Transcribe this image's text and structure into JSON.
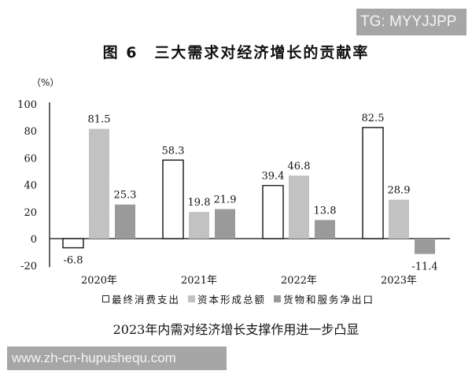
{
  "watermark_top": "TG: MYYJJPP",
  "watermark_bottom": "www.zh-cn-hupushequ.com",
  "title": "图 6　三大需求对经济增长的贡献率",
  "unit_label": "（%）",
  "legend": [
    {
      "label": "最终消费支出",
      "style": "white"
    },
    {
      "label": "资本形成总额",
      "style": "hatch"
    },
    {
      "label": "货物和服务净出口",
      "style": "grey"
    }
  ],
  "subtitle": "2023年内需对经济增长支撑作用进一步凸显",
  "chart_data": {
    "type": "bar",
    "title": "图 6　三大需求对经济增长的贡献率",
    "subtitle": "2023年内需对经济增长支撑作用进一步凸显",
    "xlabel": "",
    "ylabel": "（%）",
    "categories": [
      "2020年",
      "2021年",
      "2022年",
      "2023年"
    ],
    "series": [
      {
        "name": "最终消费支出",
        "values": [
          -6.8,
          58.3,
          39.4,
          82.5
        ]
      },
      {
        "name": "资本形成总额",
        "values": [
          81.5,
          19.8,
          46.8,
          28.9
        ]
      },
      {
        "name": "货物和服务净出口",
        "values": [
          25.3,
          21.9,
          13.8,
          -11.4
        ]
      }
    ],
    "yticks": [
      -20,
      0,
      20,
      40,
      60,
      80,
      100
    ],
    "ylim": [
      -20,
      100
    ],
    "grid": false,
    "legend_position": "bottom"
  }
}
